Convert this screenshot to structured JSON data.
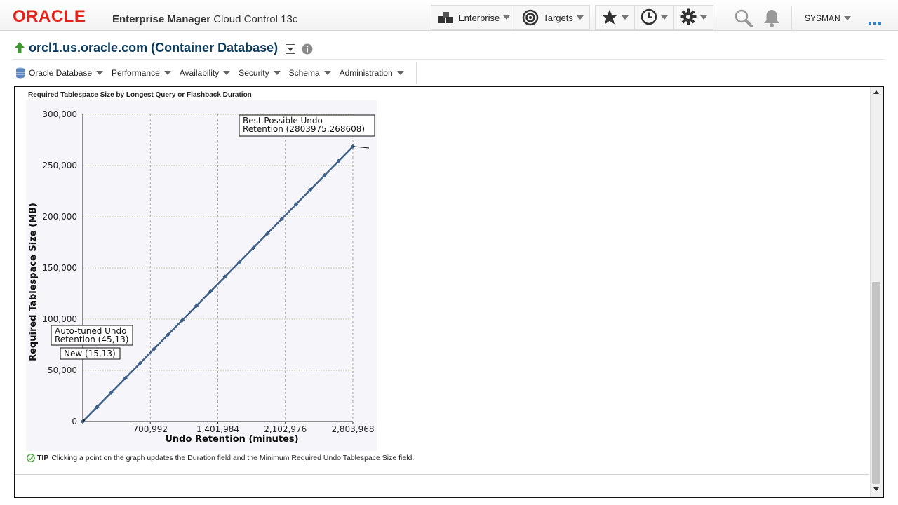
{
  "brand": {
    "logo_text": "ORACLE",
    "product_bold": "Enterprise Manager",
    "product_rest": "Cloud Control 13c"
  },
  "nav": {
    "enterprise_label": "Enterprise",
    "targets_label": "Targets",
    "favorites_icon": "star-icon",
    "history_icon": "clock-icon",
    "setup_icon": "gear-icon",
    "search_icon": "search-icon",
    "notifications_icon": "bell-icon",
    "user_label": "SYSMAN",
    "menu_icon": "hamburger-icon"
  },
  "target": {
    "title": "orcl1.us.oracle.com (Container Database)",
    "status_icon": "up-arrow-icon"
  },
  "sub_menu": {
    "items": [
      {
        "label": "Oracle Database"
      },
      {
        "label": "Performance"
      },
      {
        "label": "Availability"
      },
      {
        "label": "Security"
      },
      {
        "label": "Schema"
      },
      {
        "label": "Administration"
      }
    ]
  },
  "chart_title": "Required Tablespace Size by Longest Query or Flashback Duration",
  "tip": {
    "label": "TIP",
    "text": "Clicking a point on the graph updates the Duration field and the Minimum Required Undo Tablespace Size field."
  },
  "colors": {
    "line": "#3f6189",
    "brand_red": "#e2231a",
    "title_blue": "#0a3a5c",
    "status_green": "#3c9a2e"
  },
  "chart_data": {
    "type": "line",
    "xlabel": "Undo Retention (minutes)",
    "ylabel": "Required Tablespace Size (MB)",
    "xlim": [
      0,
      2803968
    ],
    "ylim": [
      0,
      300000
    ],
    "x_ticks": [
      700992,
      1401984,
      2102976,
      2803968
    ],
    "x_tick_labels": [
      "700,992",
      "1,401,984",
      "2,102,976",
      "2,803,968"
    ],
    "y_ticks": [
      0,
      50000,
      100000,
      150000,
      200000,
      250000,
      300000
    ],
    "y_tick_labels": [
      "0",
      "50,000",
      "100,000",
      "150,000",
      "200,000",
      "250,000",
      "300,000"
    ],
    "grid": true,
    "series": [
      {
        "points": [
          [
            0,
            0
          ],
          [
            147577,
            14137
          ],
          [
            295154,
            28275
          ],
          [
            442732,
            42412
          ],
          [
            590309,
            56549
          ],
          [
            737886,
            70686
          ],
          [
            885463,
            84824
          ],
          [
            1033041,
            98961
          ],
          [
            1180618,
            113098
          ],
          [
            1328195,
            127235
          ],
          [
            1475772,
            141373
          ],
          [
            1623350,
            155510
          ],
          [
            1770927,
            169647
          ],
          [
            1918504,
            183784
          ],
          [
            2066082,
            197922
          ],
          [
            2213659,
            212059
          ],
          [
            2361236,
            226196
          ],
          [
            2508813,
            240333
          ],
          [
            2656391,
            254471
          ],
          [
            2803975,
            268608
          ]
        ]
      }
    ],
    "annotations": [
      {
        "label_lines": [
          "Best Possible Undo",
          "Retention (2803975,268608)"
        ],
        "x": 2803975,
        "y": 268608
      },
      {
        "label_lines": [
          "Auto-tuned Undo",
          "Retention (45,13)"
        ],
        "x": 45,
        "y": 13
      },
      {
        "label_lines": [
          "New (15,13)"
        ],
        "x": 15,
        "y": 13
      }
    ]
  }
}
